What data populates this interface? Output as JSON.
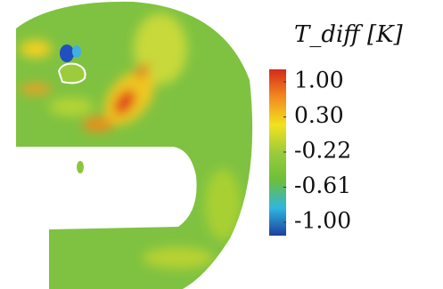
{
  "chart_data": {
    "type": "contour",
    "colorbar_title": "T_diff [K]",
    "colormap": [
      "#d42a1c",
      "#f28a1e",
      "#f2e21e",
      "#9ccb3b",
      "#6cbf3a",
      "#2fb6e0",
      "#1d3f9e"
    ],
    "cticks": [
      {
        "value": 1,
        "label": "1.00"
      },
      {
        "value": 0.3,
        "label": "0.30"
      },
      -0.22,
      -0.61,
      {
        "value": -1,
        "label": "-1.00"
      }
    ]
  }
}
